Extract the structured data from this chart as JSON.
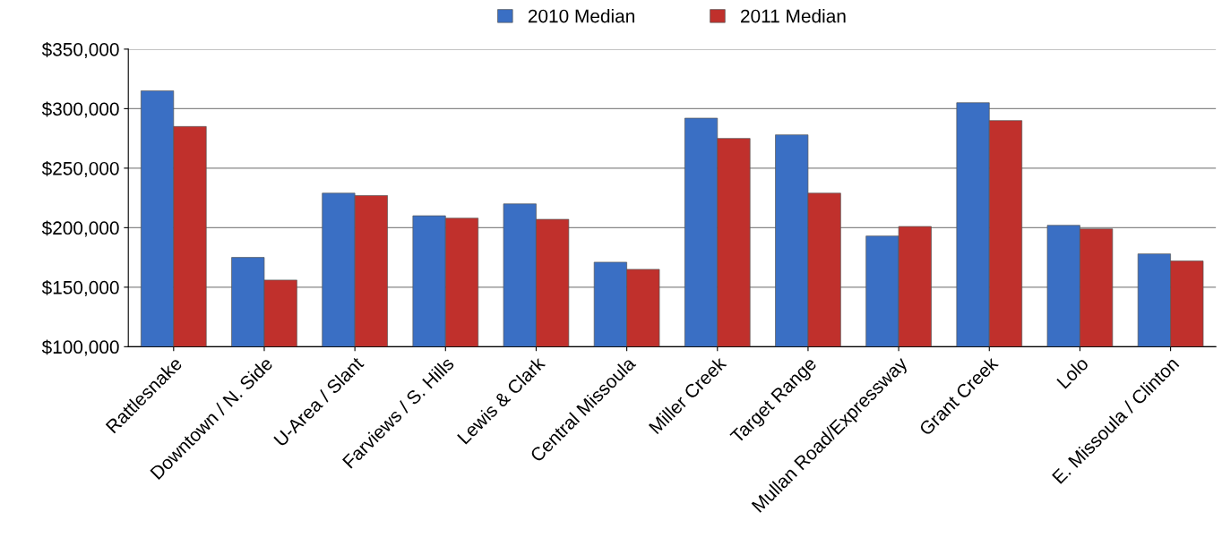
{
  "chart_data": {
    "type": "bar",
    "categories": [
      "Rattlesnake",
      "Downtown / N. Side",
      "U-Area / Slant",
      "Farviews / S. Hills",
      "Lewis & Clark",
      "Central Missoula",
      "Miller Creek",
      "Target Range",
      "Mullan Road/Expressway",
      "Grant Creek",
      "Lolo",
      "E. Missoula / Clinton"
    ],
    "series": [
      {
        "name": "2010 Median",
        "color": "#3a6fc4",
        "values": [
          315000,
          175000,
          229000,
          210000,
          220000,
          171000,
          292000,
          278000,
          193000,
          305000,
          202000,
          178000
        ]
      },
      {
        "name": "2011 Median",
        "color": "#c0302c",
        "values": [
          285000,
          156000,
          227000,
          208000,
          207000,
          165000,
          275000,
          229000,
          201000,
          290000,
          199000,
          172000
        ]
      }
    ],
    "ylim": [
      100000,
      350000
    ],
    "yticks": [
      {
        "value": 100000,
        "label": "$100,000"
      },
      {
        "value": 150000,
        "label": "$150,000"
      },
      {
        "value": 200000,
        "label": "$200,000"
      },
      {
        "value": 250000,
        "label": "$250,000"
      },
      {
        "value": 300000,
        "label": "$300,000"
      },
      {
        "value": 350000,
        "label": "$350,000"
      }
    ],
    "grid": "y",
    "legend": "top"
  }
}
